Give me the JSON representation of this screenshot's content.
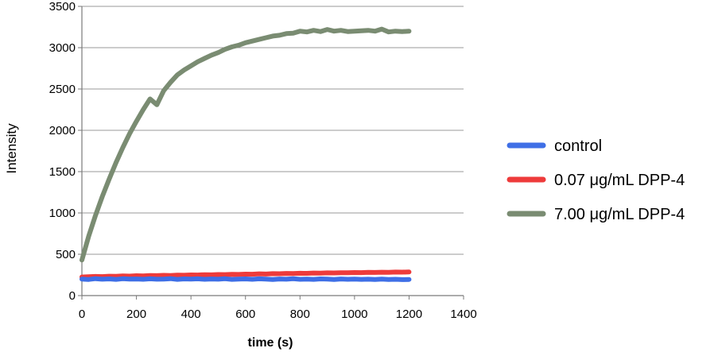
{
  "chart_data": {
    "type": "line",
    "xlabel": "time (s)",
    "ylabel": "Intensity",
    "xlim": [
      0,
      1400
    ],
    "ylim": [
      0,
      3500
    ],
    "xticks": [
      0,
      200,
      400,
      600,
      800,
      1000,
      1200,
      1400
    ],
    "yticks": [
      0,
      500,
      1000,
      1500,
      2000,
      2500,
      3000,
      3500
    ],
    "grid": "horizontal",
    "legend_position": "right",
    "x": [
      0,
      25,
      50,
      75,
      100,
      125,
      150,
      175,
      200,
      225,
      250,
      275,
      300,
      325,
      350,
      375,
      400,
      425,
      450,
      475,
      500,
      525,
      550,
      575,
      600,
      625,
      650,
      675,
      700,
      725,
      750,
      775,
      800,
      825,
      850,
      875,
      900,
      925,
      950,
      975,
      1000,
      1025,
      1050,
      1075,
      1100,
      1125,
      1150,
      1175,
      1200
    ],
    "series": [
      {
        "name": "control",
        "color": "#3f6fe6",
        "values": [
          200,
          195,
          205,
          198,
          202,
          196,
          204,
          199,
          201,
          197,
          203,
          198,
          200,
          205,
          196,
          202,
          199,
          203,
          197,
          201,
          198,
          204,
          196,
          200,
          202,
          197,
          203,
          199,
          195,
          201,
          198,
          204,
          197,
          200,
          196,
          202,
          199,
          195,
          201,
          197,
          200,
          196,
          198,
          194,
          199,
          195,
          197,
          193,
          195
        ]
      },
      {
        "name": "0.07 μg/mL DPP-4",
        "color": "#ee3b3b",
        "values": [
          225,
          228,
          232,
          230,
          235,
          233,
          238,
          236,
          240,
          238,
          243,
          241,
          245,
          243,
          248,
          246,
          250,
          249,
          253,
          251,
          255,
          254,
          258,
          256,
          260,
          259,
          263,
          261,
          265,
          264,
          268,
          266,
          270,
          269,
          273,
          271,
          275,
          274,
          277,
          276,
          279,
          278,
          281,
          280,
          283,
          282,
          285,
          284,
          286
        ]
      },
      {
        "name": "7.00 μg/mL DPP-4",
        "color": "#7a8c72",
        "values": [
          430,
          720,
          970,
          1200,
          1410,
          1610,
          1790,
          1960,
          2110,
          2250,
          2380,
          2310,
          2480,
          2580,
          2670,
          2730,
          2780,
          2830,
          2870,
          2910,
          2940,
          2980,
          3010,
          3030,
          3060,
          3080,
          3100,
          3120,
          3140,
          3150,
          3170,
          3175,
          3200,
          3190,
          3210,
          3195,
          3220,
          3200,
          3210,
          3195,
          3200,
          3205,
          3210,
          3200,
          3225,
          3190,
          3200,
          3195,
          3200
        ]
      }
    ]
  }
}
